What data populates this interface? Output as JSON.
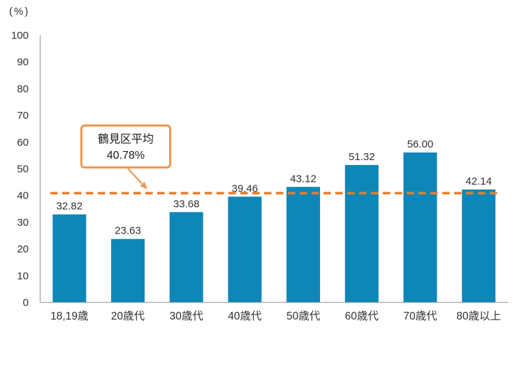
{
  "chart_data": {
    "type": "bar",
    "title": "",
    "unit_label": "(%)",
    "xlabel": "",
    "ylabel": "(%)",
    "categories": [
      "18,19歳",
      "20歳代",
      "30歳代",
      "40歳代",
      "50歳代",
      "60歳代",
      "70歳代",
      "80歳以上"
    ],
    "values": [
      32.82,
      23.63,
      33.68,
      39.46,
      43.12,
      51.32,
      56.0,
      42.14
    ],
    "value_labels": [
      "32.82",
      "23.63",
      "33.68",
      "39.46",
      "43.12",
      "51.32",
      "56.00",
      "42.14"
    ],
    "ylim": [
      0,
      100
    ],
    "y_ticks": [
      0,
      10,
      20,
      30,
      40,
      50,
      60,
      70,
      80,
      90,
      100
    ],
    "grid": false,
    "legend": null,
    "average_line": {
      "value": 40.78,
      "style": "dashed",
      "callout": {
        "line1": "鶴見区平均",
        "line2": "40.78%"
      }
    }
  },
  "colors": {
    "bar": "#0f86b8",
    "average_line": "#e87d2b",
    "callout_border": "#ed9853",
    "axis": "#a6a6a6",
    "text": "#303030"
  }
}
